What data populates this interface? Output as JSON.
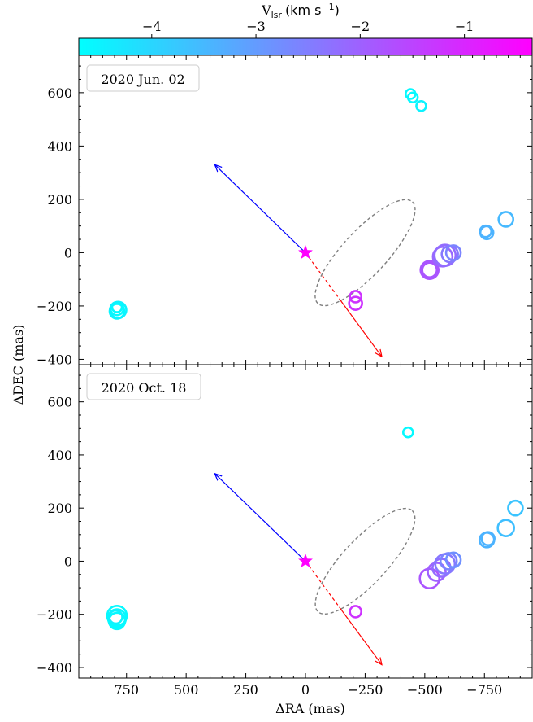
{
  "colorbar": {
    "label_main": "V",
    "label_sub": "lsr",
    "label_unit": "(km s",
    "label_unit_sup": "−1",
    "label_close": ")",
    "range": [
      -4.7,
      -0.35
    ],
    "ticks": [
      -4,
      -3,
      -2,
      -1
    ],
    "tick_labels": [
      "−4",
      "−3",
      "−2",
      "−1"
    ],
    "color_low": "#00ffff",
    "color_high": "#ff00ff"
  },
  "axes": {
    "xlabel": "ΔRA (mas)",
    "ylabel": "ΔDEC (mas)",
    "xlim": [
      950,
      -950
    ],
    "ylim": [
      -420,
      740
    ],
    "x_ticks": [
      750,
      500,
      250,
      0,
      -250,
      -500,
      -750
    ],
    "x_tick_labels": [
      "750",
      "500",
      "250",
      "0",
      "−250",
      "−500",
      "−750"
    ],
    "y_ticks": [
      -400,
      -200,
      0,
      200,
      400,
      600
    ],
    "y_tick_labels": [
      "−400",
      "−200",
      "0",
      "200",
      "400",
      "600"
    ]
  },
  "chart_data": [
    {
      "type": "scatter",
      "title": "2020 Jun. 02",
      "star": {
        "x": 0,
        "y": 0,
        "color": "#ff00ff"
      },
      "ellipse": {
        "cx": -250,
        "cy": 0,
        "semi_major": 420,
        "semi_minor": 150,
        "angle_deg": 47
      },
      "arrows": {
        "blue": {
          "from": [
            0,
            0
          ],
          "to": [
            380,
            330
          ],
          "color": "#0000ff"
        },
        "red": {
          "from": [
            0,
            0
          ],
          "to": [
            -320,
            -390
          ],
          "color": "#ff0000"
        }
      },
      "spots": [
        {
          "x": 790,
          "y": -210,
          "v": -4.6,
          "r": 8
        },
        {
          "x": 790,
          "y": -220,
          "v": -4.6,
          "r": 9
        },
        {
          "x": 790,
          "y": -205,
          "v": -4.6,
          "r": 6
        },
        {
          "x": 785,
          "y": -215,
          "v": -4.5,
          "r": 10
        },
        {
          "x": -440,
          "y": 595,
          "v": -4.6,
          "r": 6
        },
        {
          "x": -450,
          "y": 582,
          "v": -4.6,
          "r": 6
        },
        {
          "x": -485,
          "y": 550,
          "v": -4.5,
          "r": 6
        },
        {
          "x": -210,
          "y": -165,
          "v": -1.2,
          "r": 7
        },
        {
          "x": -210,
          "y": -190,
          "v": -1.2,
          "r": 8
        },
        {
          "x": -520,
          "y": -65,
          "v": -1.8,
          "r": 11
        },
        {
          "x": -520,
          "y": -65,
          "v": -1.8,
          "r": 9
        },
        {
          "x": -575,
          "y": -15,
          "v": -2.1,
          "r": 12
        },
        {
          "x": -585,
          "y": -10,
          "v": -2.2,
          "r": 13
        },
        {
          "x": -605,
          "y": -5,
          "v": -2.4,
          "r": 10
        },
        {
          "x": -620,
          "y": 0,
          "v": -2.6,
          "r": 9
        },
        {
          "x": -760,
          "y": 75,
          "v": -3.4,
          "r": 8
        },
        {
          "x": -755,
          "y": 80,
          "v": -3.4,
          "r": 7
        },
        {
          "x": -840,
          "y": 125,
          "v": -3.5,
          "r": 9
        }
      ]
    },
    {
      "type": "scatter",
      "title": "2020 Oct. 18",
      "star": {
        "x": 0,
        "y": 0,
        "color": "#ff00ff"
      },
      "ellipse": {
        "cx": -250,
        "cy": 0,
        "semi_major": 420,
        "semi_minor": 150,
        "angle_deg": 47
      },
      "arrows": {
        "blue": {
          "from": [
            0,
            0
          ],
          "to": [
            380,
            330
          ],
          "color": "#0000ff"
        },
        "red": {
          "from": [
            0,
            0
          ],
          "to": [
            -320,
            -390
          ],
          "color": "#ff0000"
        }
      },
      "spots": [
        {
          "x": 790,
          "y": -205,
          "v": -4.6,
          "r": 12
        },
        {
          "x": 790,
          "y": -215,
          "v": -4.6,
          "r": 11
        },
        {
          "x": 790,
          "y": -225,
          "v": -4.6,
          "r": 10
        },
        {
          "x": 795,
          "y": -210,
          "v": -4.5,
          "r": 8
        },
        {
          "x": -430,
          "y": 485,
          "v": -4.6,
          "r": 6
        },
        {
          "x": -210,
          "y": -190,
          "v": -1.2,
          "r": 7
        },
        {
          "x": -520,
          "y": -65,
          "v": -1.8,
          "r": 12
        },
        {
          "x": -550,
          "y": -40,
          "v": -2.0,
          "r": 11
        },
        {
          "x": -570,
          "y": -25,
          "v": -2.2,
          "r": 11
        },
        {
          "x": -585,
          "y": -10,
          "v": -2.4,
          "r": 12
        },
        {
          "x": -600,
          "y": 0,
          "v": -2.6,
          "r": 10
        },
        {
          "x": -620,
          "y": 5,
          "v": -2.8,
          "r": 9
        },
        {
          "x": -760,
          "y": 80,
          "v": -3.4,
          "r": 9
        },
        {
          "x": -765,
          "y": 85,
          "v": -3.4,
          "r": 8
        },
        {
          "x": -840,
          "y": 125,
          "v": -3.6,
          "r": 10
        },
        {
          "x": -880,
          "y": 200,
          "v": -3.7,
          "r": 9
        }
      ]
    }
  ]
}
